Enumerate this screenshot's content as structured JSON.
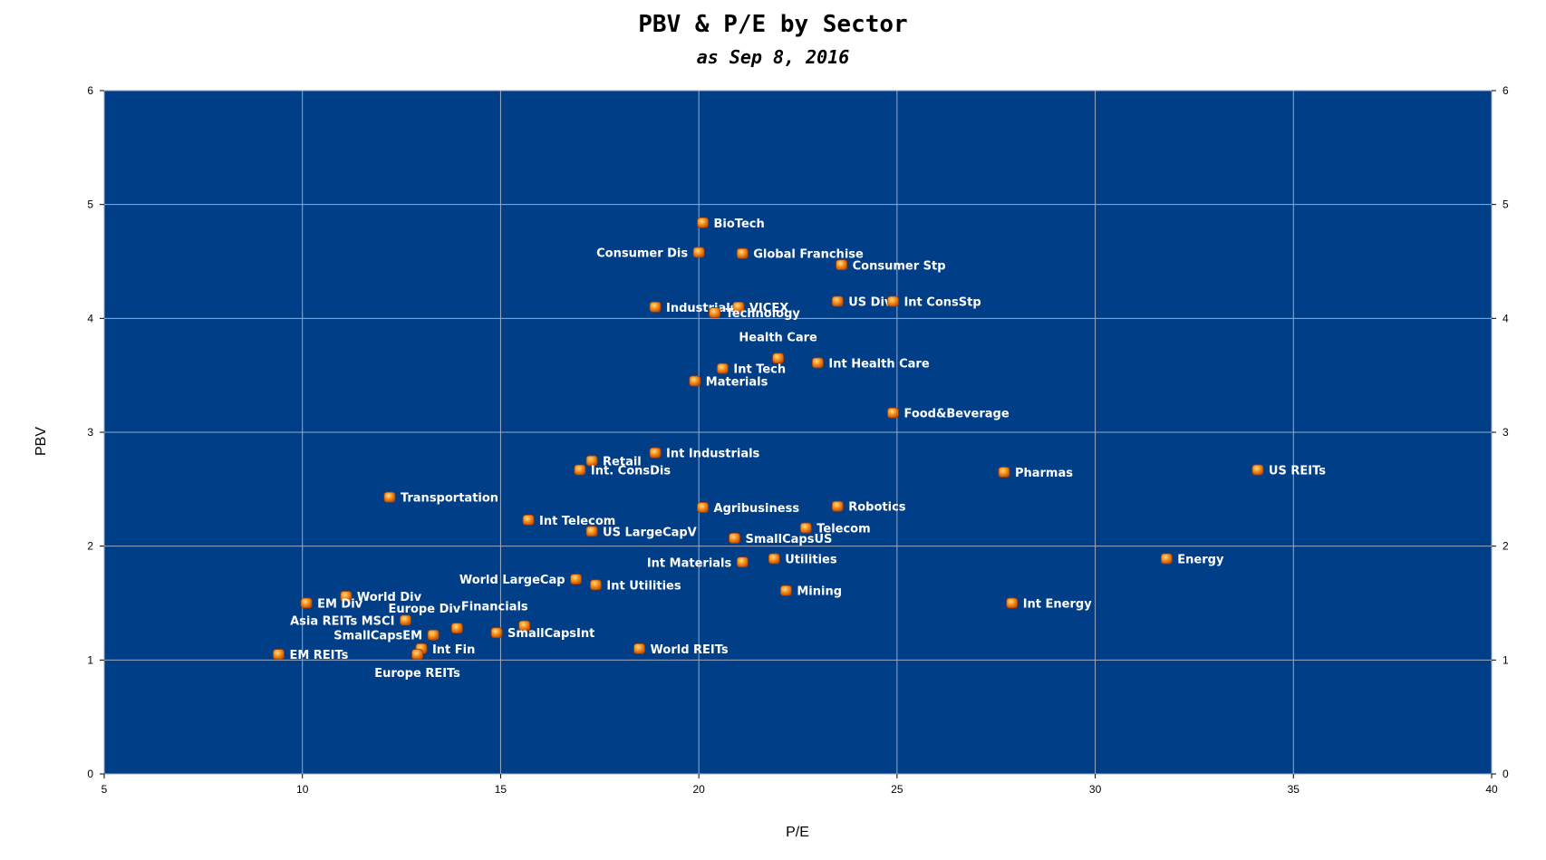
{
  "chart_data": {
    "type": "scatter",
    "title": "PBV & P/E by Sector",
    "subtitle": "as Sep 8, 2016",
    "xlabel": "P/E",
    "ylabel": "PBV",
    "xlim": [
      5,
      40
    ],
    "ylim": [
      0,
      6
    ],
    "x_ticks": [
      "5",
      "10",
      "15",
      "20",
      "25",
      "30",
      "35",
      "40"
    ],
    "y_ticks": [
      "0",
      "1",
      "2",
      "3",
      "4",
      "5",
      "6"
    ],
    "secondary_y_axis": true,
    "grid": true,
    "colors": {
      "plot_background": "#003F87",
      "grid": "#9DA9C0",
      "marker": "#F07A10",
      "label": "#FFFFFF"
    },
    "points": [
      {
        "label": "BioTech",
        "x": 20.1,
        "y": 4.84
      },
      {
        "label": "Consumer Dis",
        "x": 20.0,
        "y": 4.58
      },
      {
        "label": "Global Franchise",
        "x": 21.1,
        "y": 4.57
      },
      {
        "label": "Consumer Stp",
        "x": 23.6,
        "y": 4.47
      },
      {
        "label": "US Div",
        "x": 23.5,
        "y": 4.15
      },
      {
        "label": "Int ConsStp",
        "x": 24.9,
        "y": 4.15
      },
      {
        "label": "Industrials",
        "x": 18.9,
        "y": 4.1
      },
      {
        "label": "VICEX",
        "x": 21.0,
        "y": 4.1
      },
      {
        "label": "Technology",
        "x": 20.4,
        "y": 4.05
      },
      {
        "label": "Health Care",
        "x": 22.0,
        "y": 3.65
      },
      {
        "label": "Int Health Care",
        "x": 23.0,
        "y": 3.61
      },
      {
        "label": "Int Tech",
        "x": 20.6,
        "y": 3.56
      },
      {
        "label": "Materials",
        "x": 19.9,
        "y": 3.45
      },
      {
        "label": "Food&Beverage",
        "x": 24.9,
        "y": 3.17
      },
      {
        "label": "Int Industrials",
        "x": 18.9,
        "y": 2.82
      },
      {
        "label": "Retail",
        "x": 17.3,
        "y": 2.75
      },
      {
        "label": "Int. ConsDis",
        "x": 17.0,
        "y": 2.67
      },
      {
        "label": "Pharmas",
        "x": 27.7,
        "y": 2.65
      },
      {
        "label": "US REITs",
        "x": 34.1,
        "y": 2.67
      },
      {
        "label": "Transportation",
        "x": 12.2,
        "y": 2.43
      },
      {
        "label": "Agribusiness",
        "x": 20.1,
        "y": 2.34
      },
      {
        "label": "Robotics",
        "x": 23.5,
        "y": 2.35
      },
      {
        "label": "Int Telecom",
        "x": 15.7,
        "y": 2.23
      },
      {
        "label": "Telecom",
        "x": 22.7,
        "y": 2.16
      },
      {
        "label": "US LargeCapV",
        "x": 17.3,
        "y": 2.13
      },
      {
        "label": "SmallCapsUS",
        "x": 20.9,
        "y": 2.07
      },
      {
        "label": "Utilities",
        "x": 21.9,
        "y": 1.89
      },
      {
        "label": "Int Materials",
        "x": 21.1,
        "y": 1.86
      },
      {
        "label": "Energy",
        "x": 31.8,
        "y": 1.89
      },
      {
        "label": "World LargeCap",
        "x": 16.9,
        "y": 1.71
      },
      {
        "label": "Int Utilities",
        "x": 17.4,
        "y": 1.66
      },
      {
        "label": "Mining",
        "x": 22.2,
        "y": 1.61
      },
      {
        "label": "World Div",
        "x": 11.1,
        "y": 1.56
      },
      {
        "label": "EM Div",
        "x": 10.1,
        "y": 1.5
      },
      {
        "label": "Int Energy",
        "x": 27.9,
        "y": 1.5
      },
      {
        "label": "Europe Div",
        "x": 13.9,
        "y": 1.28
      },
      {
        "label": "Financials",
        "x": 15.6,
        "y": 1.3
      },
      {
        "label": "Asia REITs MSCI",
        "x": 12.6,
        "y": 1.35
      },
      {
        "label": "SmallCapsEM",
        "x": 13.3,
        "y": 1.22
      },
      {
        "label": "SmallCapsInt",
        "x": 14.9,
        "y": 1.24
      },
      {
        "label": "World REITs",
        "x": 18.5,
        "y": 1.1
      },
      {
        "label": "Int Fin",
        "x": 13.0,
        "y": 1.1
      },
      {
        "label": "EM REITs",
        "x": 9.4,
        "y": 1.05
      },
      {
        "label": "Europe REITs",
        "x": 12.9,
        "y": 1.05
      }
    ]
  }
}
